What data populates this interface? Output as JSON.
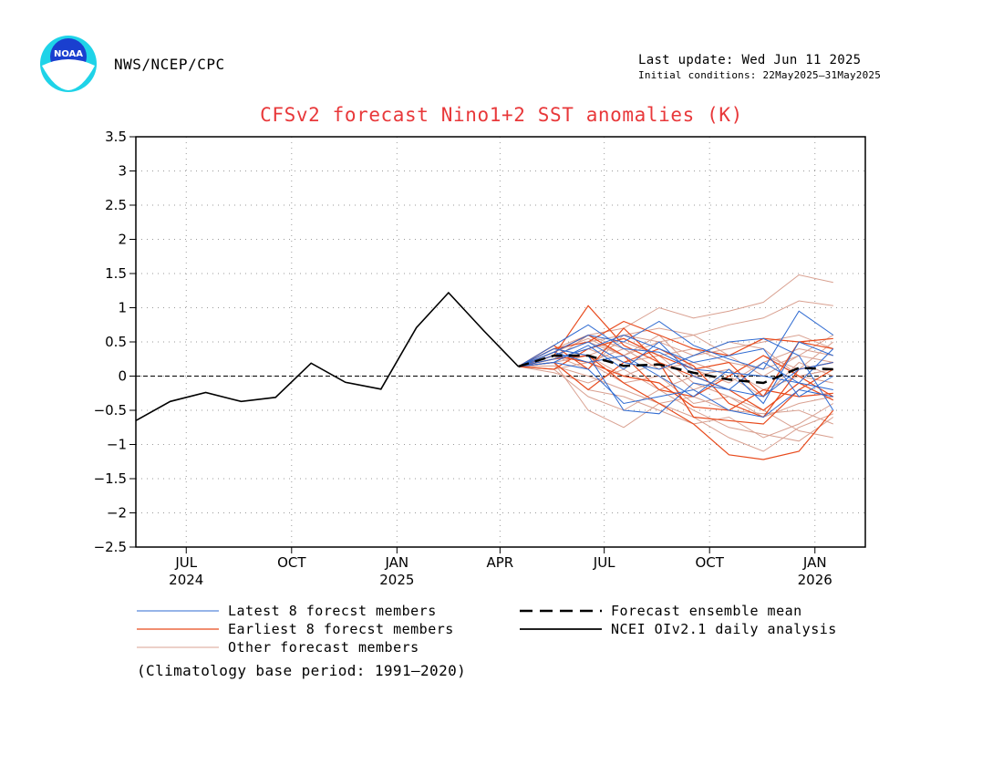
{
  "header": {
    "logo_text": "NOAA",
    "agency": "NWS/NCEP/CPC",
    "last_update": "Last update: Wed Jun 11 2025",
    "initial_conditions": "Initial conditions: 22May2025–31May2025"
  },
  "footer": {
    "climatology_note": "(Climatology base period: 1991–2020)"
  },
  "colors": {
    "latest": "#2e6ad1",
    "earliest": "#e84a1c",
    "other": "#d9a090",
    "title": "#e8383a"
  },
  "chart_data": {
    "type": "line",
    "title": "CFSv2 forecast Nino1+2 SST anomalies (K)",
    "ylim": [
      -2.5,
      3.5
    ],
    "yticks": [
      3.5,
      3,
      2.5,
      2,
      1.5,
      1,
      0.5,
      0,
      -0.5,
      -1,
      -1.5,
      -2,
      -2.5
    ],
    "ytick_labels": [
      "3.5",
      "3",
      "2.5",
      "2",
      "1.5",
      "1",
      "0.5",
      "0",
      "−0.5",
      "−1",
      "−1.5",
      "−2",
      "−2.5"
    ],
    "xlim": [
      "2024-06-01",
      "2026-02-28"
    ],
    "xticks": [
      {
        "date": "2024-07-15",
        "label": "JUL",
        "year": "2024"
      },
      {
        "date": "2024-10-15",
        "label": "OCT",
        "year": ""
      },
      {
        "date": "2025-01-15",
        "label": "JAN",
        "year": "2025"
      },
      {
        "date": "2025-04-15",
        "label": "APR",
        "year": ""
      },
      {
        "date": "2025-07-15",
        "label": "JUL",
        "year": ""
      },
      {
        "date": "2025-10-15",
        "label": "OCT",
        "year": ""
      },
      {
        "date": "2026-01-15",
        "label": "JAN",
        "year": "2026"
      }
    ],
    "grid": true,
    "zero_line": true,
    "legend": [
      {
        "label": "Latest 8 forecst members",
        "style": "latest"
      },
      {
        "label": "Earliest 8 forecst members",
        "style": "earliest"
      },
      {
        "label": "Other forecast members",
        "style": "other"
      },
      {
        "label": "Forecast ensemble mean",
        "style": "mean"
      },
      {
        "label": "NCEI OIv2.1 daily analysis",
        "style": "analysis"
      }
    ],
    "analysis": {
      "name": "NCEI OIv2.1 daily analysis",
      "x": [
        "2024-06-01",
        "2024-07-01",
        "2024-08-01",
        "2024-09-01",
        "2024-10-01",
        "2024-11-01",
        "2024-12-01",
        "2025-01-01",
        "2025-02-01",
        "2025-03-01",
        "2025-04-01",
        "2025-05-01"
      ],
      "y": [
        -0.65,
        -0.37,
        -0.24,
        -0.37,
        -0.31,
        0.19,
        -0.09,
        -0.19,
        0.71,
        1.22,
        0.66,
        0.14
      ]
    },
    "ensemble_mean": {
      "name": "Forecast ensemble mean",
      "x": [
        "2025-05-01",
        "2025-06-01",
        "2025-07-01",
        "2025-08-01",
        "2025-09-01",
        "2025-10-01",
        "2025-11-01",
        "2025-12-01",
        "2026-01-01",
        "2026-01-31"
      ],
      "y": [
        0.14,
        0.3,
        0.3,
        0.15,
        0.17,
        0.05,
        -0.05,
        -0.1,
        0.12,
        0.1
      ]
    },
    "member_x": [
      "2025-05-01",
      "2025-06-01",
      "2025-07-01",
      "2025-08-01",
      "2025-09-01",
      "2025-10-01",
      "2025-11-01",
      "2025-12-01",
      "2026-01-01",
      "2026-01-31"
    ],
    "latest_members": [
      [
        0.14,
        0.45,
        0.75,
        0.4,
        0.35,
        0.1,
        0.05,
        0.0,
        -0.1,
        0.4
      ],
      [
        0.14,
        0.35,
        0.6,
        0.5,
        0.8,
        0.45,
        0.25,
        0.1,
        0.95,
        0.6
      ],
      [
        0.14,
        0.2,
        0.1,
        -0.4,
        -0.3,
        -0.2,
        -0.5,
        -0.6,
        -0.2,
        -0.3
      ],
      [
        0.14,
        0.4,
        0.3,
        -0.5,
        -0.55,
        -0.1,
        -0.2,
        -0.3,
        0.1,
        0.2
      ],
      [
        0.14,
        0.3,
        0.5,
        0.2,
        0.1,
        0.3,
        0.5,
        0.55,
        0.3,
        -0.5
      ],
      [
        0.14,
        0.25,
        0.4,
        0.6,
        0.4,
        0.2,
        0.3,
        0.4,
        -0.3,
        0.0
      ],
      [
        0.14,
        0.35,
        0.2,
        0.3,
        0.0,
        -0.3,
        0.1,
        -0.4,
        0.5,
        0.3
      ],
      [
        0.14,
        0.2,
        0.45,
        0.1,
        0.5,
        0.0,
        -0.2,
        0.2,
        -0.1,
        -0.2
      ]
    ],
    "earliest_members": [
      [
        0.14,
        0.3,
        1.03,
        0.45,
        0.2,
        0.0,
        -0.2,
        -0.5,
        -0.1,
        -0.35
      ],
      [
        0.14,
        0.4,
        0.5,
        0.8,
        0.6,
        0.4,
        0.3,
        0.55,
        0.5,
        0.55
      ],
      [
        0.14,
        0.25,
        0.3,
        -0.1,
        -0.4,
        -0.7,
        -1.15,
        -1.22,
        -1.1,
        -0.5
      ],
      [
        0.14,
        0.45,
        0.1,
        0.7,
        0.2,
        -0.6,
        -0.65,
        -0.7,
        -0.2,
        0.1
      ],
      [
        0.14,
        0.2,
        -0.2,
        0.2,
        0.4,
        0.15,
        -0.4,
        -0.6,
        0.1,
        0.2
      ],
      [
        0.14,
        0.35,
        0.6,
        0.3,
        -0.2,
        -0.3,
        0.0,
        0.3,
        0.0,
        -0.3
      ],
      [
        0.14,
        0.1,
        0.4,
        0.55,
        0.3,
        0.1,
        0.2,
        -0.3,
        0.5,
        0.4
      ],
      [
        0.14,
        0.3,
        0.2,
        0.0,
        -0.1,
        -0.45,
        -0.5,
        -0.2,
        -0.3,
        -0.25
      ]
    ],
    "other_members": [
      [
        0.14,
        0.4,
        0.6,
        0.7,
        1.0,
        0.85,
        0.95,
        1.08,
        1.48,
        1.37
      ],
      [
        0.14,
        0.3,
        0.5,
        0.6,
        0.7,
        0.6,
        0.75,
        0.85,
        1.1,
        1.03
      ],
      [
        0.14,
        0.2,
        -0.5,
        -0.75,
        -0.4,
        -0.6,
        -0.9,
        -1.1,
        -0.75,
        -0.55
      ],
      [
        0.14,
        0.1,
        -0.3,
        -0.5,
        -0.2,
        -0.5,
        -0.75,
        -0.85,
        -0.95,
        -0.6
      ],
      [
        0.14,
        0.3,
        0.2,
        0.4,
        0.1,
        0.2,
        0.0,
        0.3,
        0.1,
        0.5
      ],
      [
        0.14,
        0.25,
        0.4,
        0.2,
        0.3,
        -0.1,
        -0.3,
        -0.6,
        -0.4,
        -0.3
      ],
      [
        0.14,
        0.35,
        0.55,
        0.3,
        0.5,
        0.3,
        0.4,
        0.5,
        0.6,
        0.4
      ],
      [
        0.14,
        0.15,
        0.0,
        -0.2,
        -0.4,
        -0.3,
        -0.5,
        -0.55,
        -0.5,
        -0.7
      ],
      [
        0.14,
        0.2,
        0.3,
        0.5,
        0.3,
        0.4,
        0.2,
        0.1,
        0.3,
        0.2
      ],
      [
        0.14,
        0.05,
        -0.1,
        0.1,
        -0.2,
        0.0,
        0.1,
        -0.2,
        0.0,
        0.1
      ],
      [
        0.14,
        0.3,
        0.1,
        0.6,
        0.5,
        0.6,
        0.3,
        0.0,
        0.3,
        0.6
      ],
      [
        0.14,
        0.2,
        -0.2,
        -0.3,
        -0.5,
        -0.7,
        -0.6,
        -0.9,
        -0.7,
        -0.4
      ],
      [
        0.14,
        0.4,
        0.3,
        0.0,
        0.2,
        -0.2,
        0.0,
        -0.3,
        0.2,
        0.0
      ],
      [
        0.14,
        0.25,
        0.6,
        0.4,
        0.1,
        0.3,
        0.5,
        0.4,
        0.0,
        -0.1
      ],
      [
        0.14,
        0.1,
        0.2,
        -0.1,
        0.0,
        -0.4,
        -0.3,
        -0.5,
        -0.8,
        -0.9
      ],
      [
        0.14,
        0.3,
        0.5,
        0.3,
        0.6,
        0.1,
        -0.1,
        0.2,
        0.4,
        0.3
      ]
    ]
  }
}
